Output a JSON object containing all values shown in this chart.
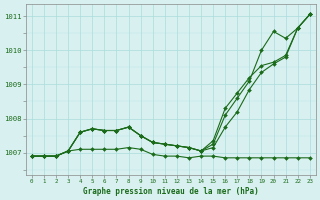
{
  "title": "Graphe pression niveau de la mer (hPa)",
  "xlabel_hours": [
    0,
    1,
    2,
    3,
    4,
    5,
    6,
    7,
    8,
    9,
    10,
    11,
    12,
    13,
    14,
    15,
    16,
    17,
    18,
    19,
    20,
    21,
    22,
    23
  ],
  "ylim": [
    1006.35,
    1011.35
  ],
  "yticks": [
    1007,
    1008,
    1009,
    1010,
    1011
  ],
  "xlim": [
    -0.5,
    23.5
  ],
  "line1": [
    1006.9,
    1006.9,
    1006.9,
    1007.05,
    1007.1,
    1007.1,
    1007.1,
    1007.1,
    1007.15,
    1007.1,
    1006.95,
    1006.9,
    1006.9,
    1006.85,
    1006.9,
    1006.9,
    1006.85,
    1006.85,
    1006.85,
    1006.85,
    1006.85,
    1006.85,
    1006.85,
    1006.85
  ],
  "line2": [
    1006.9,
    1006.9,
    1006.9,
    1007.05,
    1007.6,
    1007.7,
    1007.65,
    1007.65,
    1007.75,
    1007.5,
    1007.3,
    1007.25,
    1007.2,
    1007.15,
    1007.05,
    1007.15,
    1007.75,
    1008.2,
    1008.85,
    1009.35,
    1009.6,
    1009.8,
    1010.65,
    1011.05
  ],
  "line3": [
    1006.9,
    1006.9,
    1006.9,
    1007.05,
    1007.6,
    1007.7,
    1007.65,
    1007.65,
    1007.75,
    1007.5,
    1007.3,
    1007.25,
    1007.2,
    1007.15,
    1007.05,
    1007.35,
    1008.3,
    1008.75,
    1009.2,
    1009.55,
    1009.65,
    1009.85,
    1010.65,
    1011.05
  ],
  "line4": [
    1006.9,
    1006.9,
    1006.9,
    1007.05,
    1007.6,
    1007.7,
    1007.65,
    1007.65,
    1007.75,
    1007.5,
    1007.3,
    1007.25,
    1007.2,
    1007.15,
    1007.05,
    1007.25,
    1008.1,
    1008.6,
    1009.1,
    1010.0,
    1010.55,
    1010.35,
    1010.65,
    1011.05
  ],
  "line_color": "#1a6b1a",
  "bg_color": "#d9f0f0",
  "grid_color": "#aadddd",
  "tick_label_color": "#1a6b1a",
  "title_color": "#1a6b1a",
  "marker": "D",
  "marker_size": 2.0,
  "linewidth": 0.8
}
